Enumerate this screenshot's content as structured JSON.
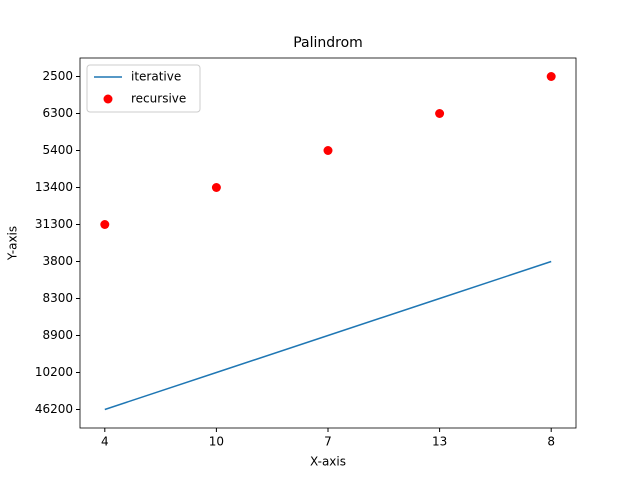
{
  "chart_data": {
    "type": "line-scatter",
    "title": "Palindrom",
    "x_label": "X-axis",
    "y_label": "Y-axis",
    "categories": [
      "4",
      "10",
      "7",
      "13",
      "8"
    ],
    "y_categories": [
      46200,
      10200,
      8900,
      8300,
      3800,
      31300,
      13400,
      5400,
      6300,
      2500
    ],
    "series": [
      {
        "name": "iterative",
        "kind": "line",
        "color": "#1f77b4",
        "values": [
          46200,
          10200,
          8900,
          8300,
          3800
        ]
      },
      {
        "name": "recursive",
        "kind": "scatter",
        "color": "#ff0000",
        "values": [
          31300,
          13400,
          5400,
          6300,
          2500
        ]
      }
    ],
    "legend": "upper left"
  }
}
